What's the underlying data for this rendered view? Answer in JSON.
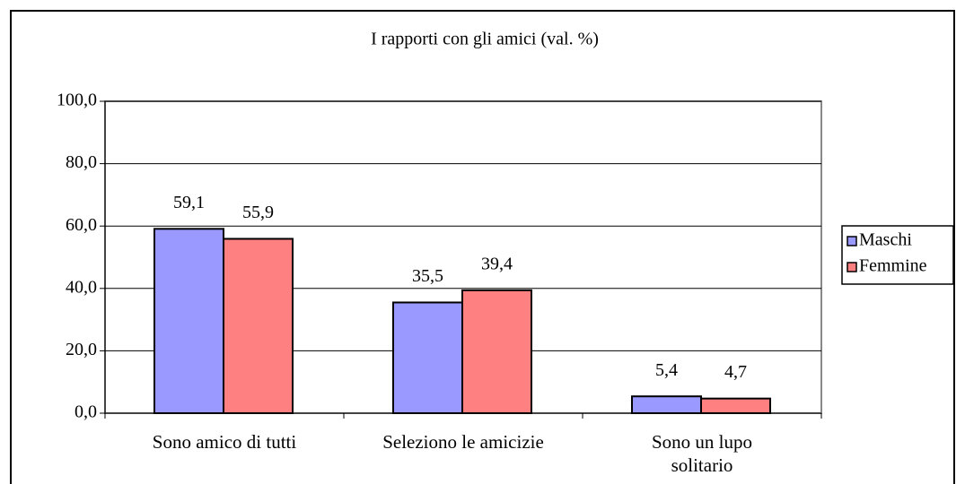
{
  "chart_data": {
    "type": "bar",
    "title": "I rapporti con gli amici (val. %)",
    "categories": [
      "Sono amico di tutti",
      "Seleziono le amicizie",
      "Sono un lupo solitario"
    ],
    "series": [
      {
        "name": "Maschi",
        "color": "#9999ff",
        "values": [
          59.1,
          35.5,
          5.4
        ],
        "value_labels": [
          "59,1",
          "35,5",
          "5,4"
        ]
      },
      {
        "name": "Femmine",
        "color": "#ff8080",
        "values": [
          55.9,
          39.4,
          4.7
        ],
        "value_labels": [
          "55,9",
          "39,4",
          "4,7"
        ]
      }
    ],
    "ylim": [
      0,
      100
    ],
    "yticks": [
      {
        "value": 0,
        "label": "0,0"
      },
      {
        "value": 20,
        "label": "20,0"
      },
      {
        "value": 40,
        "label": "40,0"
      },
      {
        "value": 60,
        "label": "60,0"
      },
      {
        "value": 80,
        "label": "80,0"
      },
      {
        "value": 100,
        "label": "100,0"
      }
    ],
    "grid": true,
    "legend": "right"
  }
}
